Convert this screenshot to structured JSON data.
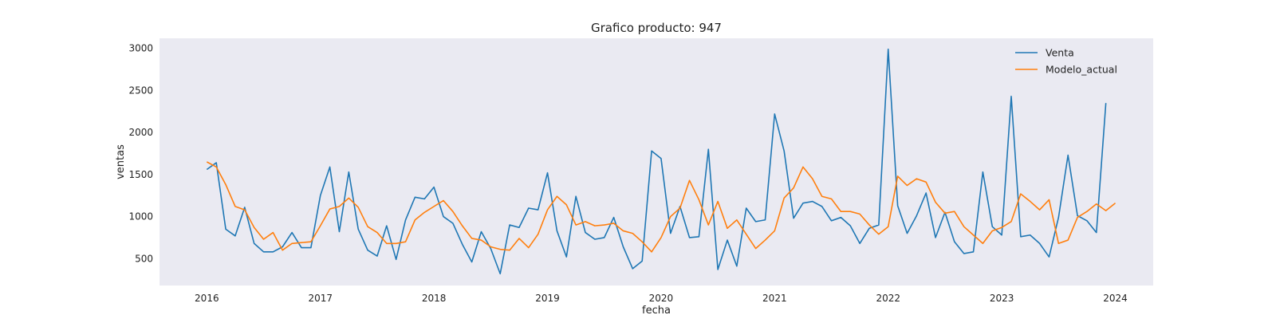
{
  "chart_data": {
    "type": "line",
    "title": "Grafico producto: 947",
    "xlabel": "fecha",
    "ylabel": "ventas",
    "x_start": "2016-01",
    "x_tick_labels": [
      "2016",
      "2017",
      "2018",
      "2019",
      "2020",
      "2021",
      "2022",
      "2023",
      "2024"
    ],
    "y_tick_labels": [
      "500",
      "1000",
      "1500",
      "2000",
      "2500",
      "3000"
    ],
    "xlim": [
      "2015-08",
      "2024-05"
    ],
    "ylim": [
      180,
      3120
    ],
    "grid": false,
    "legend_position": "top-right",
    "series": [
      {
        "name": "Venta",
        "color": "#1f77b4",
        "values": [
          1560,
          1640,
          850,
          770,
          1110,
          680,
          580,
          580,
          640,
          810,
          630,
          630,
          1250,
          1590,
          820,
          1530,
          850,
          600,
          530,
          890,
          490,
          960,
          1230,
          1210,
          1350,
          1000,
          920,
          670,
          460,
          820,
          620,
          320,
          900,
          870,
          1100,
          1080,
          1520,
          830,
          520,
          1240,
          810,
          730,
          750,
          990,
          640,
          380,
          470,
          1780,
          1690,
          800,
          1120,
          750,
          760,
          1800,
          370,
          720,
          410,
          1100,
          940,
          960,
          2220,
          1780,
          980,
          1160,
          1180,
          1120,
          950,
          990,
          890,
          680,
          860,
          900,
          2990,
          1130,
          800,
          1010,
          1280,
          750,
          1050,
          700,
          560,
          580,
          1530,
          880,
          780,
          2430,
          760,
          780,
          680,
          520,
          990,
          1730,
          1010,
          950,
          810,
          2350
        ]
      },
      {
        "name": "Modelo_actual",
        "color": "#ff7f0e",
        "values": [
          1650,
          1590,
          1380,
          1120,
          1080,
          870,
          730,
          810,
          600,
          680,
          690,
          700,
          890,
          1090,
          1120,
          1220,
          1110,
          880,
          810,
          680,
          680,
          700,
          960,
          1050,
          1120,
          1190,
          1060,
          890,
          740,
          720,
          640,
          610,
          600,
          740,
          630,
          790,
          1080,
          1240,
          1140,
          900,
          940,
          890,
          900,
          920,
          830,
          800,
          700,
          580,
          750,
          1000,
          1100,
          1430,
          1200,
          900,
          1180,
          860,
          960,
          790,
          620,
          720,
          830,
          1220,
          1340,
          1590,
          1450,
          1240,
          1210,
          1060,
          1060,
          1030,
          900,
          790,
          880,
          1480,
          1370,
          1450,
          1410,
          1170,
          1040,
          1060,
          880,
          780,
          680,
          830,
          870,
          940,
          1270,
          1180,
          1080,
          1200,
          680,
          720,
          990,
          1060,
          1150,
          1070,
          1160
        ]
      }
    ]
  }
}
